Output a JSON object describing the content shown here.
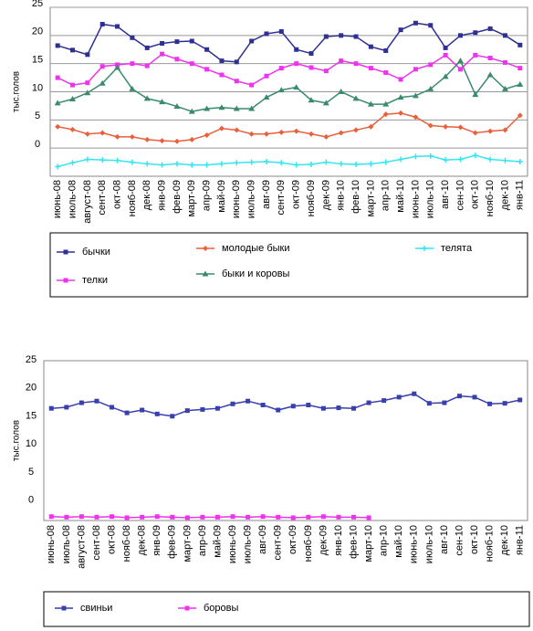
{
  "chart_data": [
    {
      "type": "line",
      "y_label": "тыс.голов",
      "grid": true,
      "categories": [
        "июнь-08",
        "июль-08",
        "август-08",
        "сент-08",
        "окт-08",
        "нояб-08",
        "дек-08",
        "янв-09",
        "фев-09",
        "март-09",
        "апр-09",
        "май-09",
        "июнь-09",
        "июль-09",
        "авг-09",
        "сент-09",
        "окт-09",
        "нояб-09",
        "дек-09",
        "янв-10",
        "фев-10",
        "март-10",
        "апр-10",
        "май-10",
        "июнь-10",
        "июль-10",
        "авг-10",
        "сен-10",
        "окт-10",
        "нояб-10",
        "дек-10",
        "янв-11"
      ],
      "ylim": [
        -5,
        25
      ],
      "yticks": [
        0,
        5,
        10,
        15,
        20,
        25
      ],
      "series": [
        {
          "name": "бычки",
          "color": "#2e3192",
          "marker": "square",
          "values": [
            18.2,
            17.4,
            16.6,
            22,
            21.6,
            19.6,
            17.8,
            18.6,
            18.9,
            19,
            17.5,
            15.5,
            15.3,
            19,
            20.3,
            20.7,
            17.5,
            16.8,
            19.8,
            20,
            19.8,
            18,
            17.3,
            21,
            22.2,
            21.8,
            17.8,
            20,
            20.5,
            21.2,
            20,
            18.3
          ]
        },
        {
          "name": "молодые быки",
          "color": "#e8603c",
          "marker": "diamond",
          "values": [
            3.8,
            3.3,
            2.5,
            2.7,
            2,
            2,
            1.5,
            1.3,
            1.2,
            1.5,
            2.3,
            3.5,
            3.2,
            2.5,
            2.5,
            2.8,
            3,
            2.5,
            2,
            2.7,
            3.2,
            3.8,
            6,
            6.2,
            5.5,
            4,
            3.8,
            3.7,
            2.7,
            3,
            3.2,
            5.8
          ]
        },
        {
          "name": "телята",
          "color": "#33e6f0",
          "marker": "cross",
          "values": [
            -3.3,
            -2.6,
            -2,
            -2.1,
            -2.2,
            -2.5,
            -2.8,
            -3,
            -2.8,
            -3,
            -3,
            -2.8,
            -2.6,
            -2.5,
            -2.4,
            -2.6,
            -3,
            -2.9,
            -2.5,
            -2.8,
            -2.9,
            -2.8,
            -2.5,
            -2,
            -1.5,
            -1.4,
            -2.1,
            -2,
            -1.3,
            -2,
            -2.2,
            -2.4
          ]
        },
        {
          "name": "телки",
          "color": "#ee33ee",
          "marker": "square",
          "values": [
            12.5,
            11.2,
            11.6,
            14.5,
            14.8,
            15,
            14.6,
            16.7,
            15.8,
            15,
            14,
            13,
            11.9,
            11.2,
            12.8,
            14.2,
            15,
            14.3,
            13.7,
            15.5,
            15,
            14.2,
            13.4,
            12.2,
            14,
            14.8,
            16.5,
            14,
            16.5,
            16,
            15.2,
            14.2
          ]
        },
        {
          "name": "быки и коровы",
          "color": "#3a8a6e",
          "marker": "triangle",
          "values": [
            8,
            8.7,
            9.8,
            11.5,
            14.3,
            10.5,
            8.8,
            8.2,
            7.4,
            6.5,
            7,
            7.2,
            7,
            7,
            9,
            10.3,
            10.8,
            8.5,
            8,
            10,
            8.8,
            7.8,
            7.8,
            9,
            9.3,
            10.5,
            12.7,
            15.5,
            9.5,
            13,
            10.5,
            11.3
          ]
        }
      ]
    },
    {
      "type": "line",
      "y_label": "тыс.голов",
      "grid": false,
      "categories": [
        "июнь-08",
        "июль-08",
        "август-08",
        "сент-08",
        "окт-08",
        "нояб-08",
        "дек-08",
        "янв-09",
        "фев-09",
        "март-09",
        "апр-09",
        "май-09",
        "июнь-09",
        "июль-09",
        "авг-09",
        "сент-09",
        "окт-09",
        "нояб-09",
        "дек-09",
        "янв-10",
        "фев-10",
        "март-10",
        "апр-10",
        "май-10",
        "июнь-10",
        "июль-10",
        "авг-10",
        "сен-10",
        "окт-10",
        "нояб-10",
        "дек-10",
        "янв-11"
      ],
      "ylim": [
        -3,
        25.5
      ],
      "yticks": [
        0,
        5,
        10,
        15,
        20,
        25
      ],
      "series": [
        {
          "name": "свиньи",
          "color": "#3a3fae",
          "marker": "square",
          "values": [
            17,
            17.2,
            18,
            18.3,
            17.2,
            16.2,
            16.7,
            16,
            15.6,
            16.6,
            16.8,
            17,
            17.8,
            18.3,
            17.6,
            16.7,
            17.4,
            17.6,
            17,
            17.1,
            17,
            18,
            18.4,
            19,
            19.6,
            17.9,
            18,
            19.2,
            19,
            17.8,
            17.9,
            18.5
          ]
        },
        {
          "name": "боровы",
          "color": "#ee33ee",
          "marker": "square",
          "values": [
            -2.3,
            -2.4,
            -2.3,
            -2.4,
            -2.3,
            -2.5,
            -2.4,
            -2.3,
            -2.4,
            -2.5,
            -2.4,
            -2.4,
            -2.3,
            -2.4,
            -2.3,
            -2.4,
            -2.5,
            -2.4,
            -2.3,
            -2.4,
            -2.4,
            -2.5,
            null,
            null,
            null,
            null,
            null,
            null,
            null,
            null,
            null,
            null
          ]
        }
      ]
    }
  ]
}
